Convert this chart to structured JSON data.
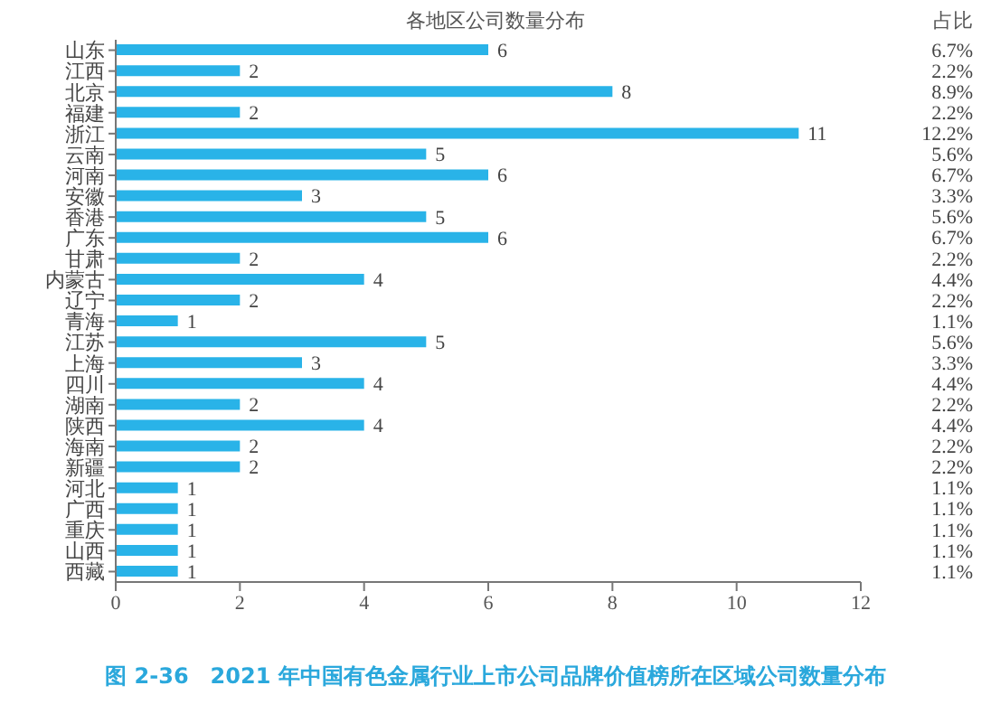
{
  "chart_data": {
    "type": "bar",
    "orientation": "horizontal",
    "title": "各地区公司数量分布",
    "categories": [
      "山东",
      "江西",
      "北京",
      "福建",
      "浙江",
      "云南",
      "河南",
      "安徽",
      "香港",
      "广东",
      "甘肃",
      "内蒙古",
      "辽宁",
      "青海",
      "江苏",
      "上海",
      "四川",
      "湖南",
      "陕西",
      "海南",
      "新疆",
      "河北",
      "广西",
      "重庆",
      "山西",
      "西藏"
    ],
    "values": [
      6,
      2,
      8,
      2,
      11,
      5,
      6,
      3,
      5,
      6,
      2,
      4,
      2,
      1,
      5,
      3,
      4,
      2,
      4,
      2,
      2,
      1,
      1,
      1,
      1,
      1
    ],
    "color": "#29b3e8",
    "data_labels": true,
    "xlim": [
      0,
      12
    ],
    "xticks": [
      0,
      2,
      4,
      6,
      8,
      10,
      12
    ],
    "grid": false,
    "legend": false,
    "annotations": [
      "占比",
      "6.7%",
      "2.2%",
      "8.9%",
      "2.2%",
      "12.2%",
      "5.6%",
      "6.7%",
      "3.3%",
      "5.6%",
      "6.7%",
      "2.2%",
      "4.4%",
      "2.2%",
      "1.1%",
      "5.6%",
      "3.3%",
      "4.4%",
      "2.2%",
      "4.4%",
      "2.2%",
      "2.2%",
      "1.1%",
      "1.1%",
      "1.1%",
      "1.1%",
      "1.1%",
      "图 2-36　2021 年中国有色金属行业上市公司品牌价值榜所在区域公司数量分布"
    ]
  }
}
